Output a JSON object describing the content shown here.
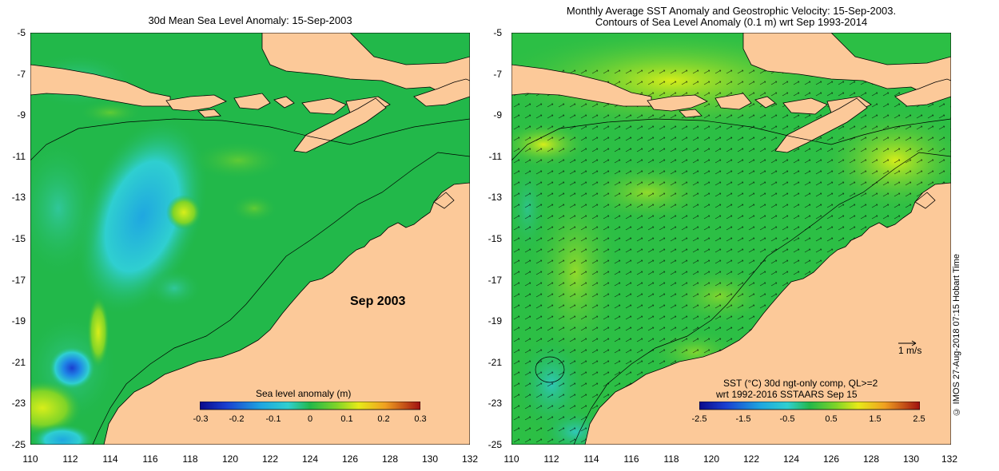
{
  "left_panel": {
    "title": "30d Mean Sea Level Anomaly: 15-Sep-2003",
    "period_label": "Sep 2003",
    "colorbar": {
      "label": "Sea level anomaly (m)",
      "ticks": [
        "-0.3",
        "-0.2",
        "-0.1",
        "0",
        "0.1",
        "0.2",
        "0.3"
      ]
    }
  },
  "right_panel": {
    "title_line1": "Monthly Average SST Anomaly  and Geostrophic Velocity: 15-Sep-2003.",
    "title_line2": "Contours of Sea Level Anomaly (0.1 m) wrt Sep 1993-2014",
    "velocity_scale": "1 m/s",
    "colorbar": {
      "label_line1": "SST (°C) 30d ngt-only comp, QL>=2",
      "label_line2": "wrt 1992-2016 SSTAARS Sep 15",
      "ticks": [
        "-2.5",
        "-1.5",
        "-0.5",
        "0.5",
        "1.5",
        "2.5"
      ]
    }
  },
  "axes": {
    "lat_ticks": [
      "-5",
      "-7",
      "-9",
      "-11",
      "-13",
      "-15",
      "-17",
      "-19",
      "-21",
      "-23",
      "-25"
    ],
    "lon_ticks": [
      "110",
      "112",
      "114",
      "116",
      "118",
      "120",
      "122",
      "124",
      "126",
      "128",
      "130",
      "132"
    ]
  },
  "credit": "© IMOS 27-Aug-2018 07:15 Hobart Time",
  "colors": {
    "land": "#fcc999",
    "ocean_base": "#22b84a",
    "ocean_low": "#2fcfd0",
    "ocean_high": "#b8e61a"
  }
}
